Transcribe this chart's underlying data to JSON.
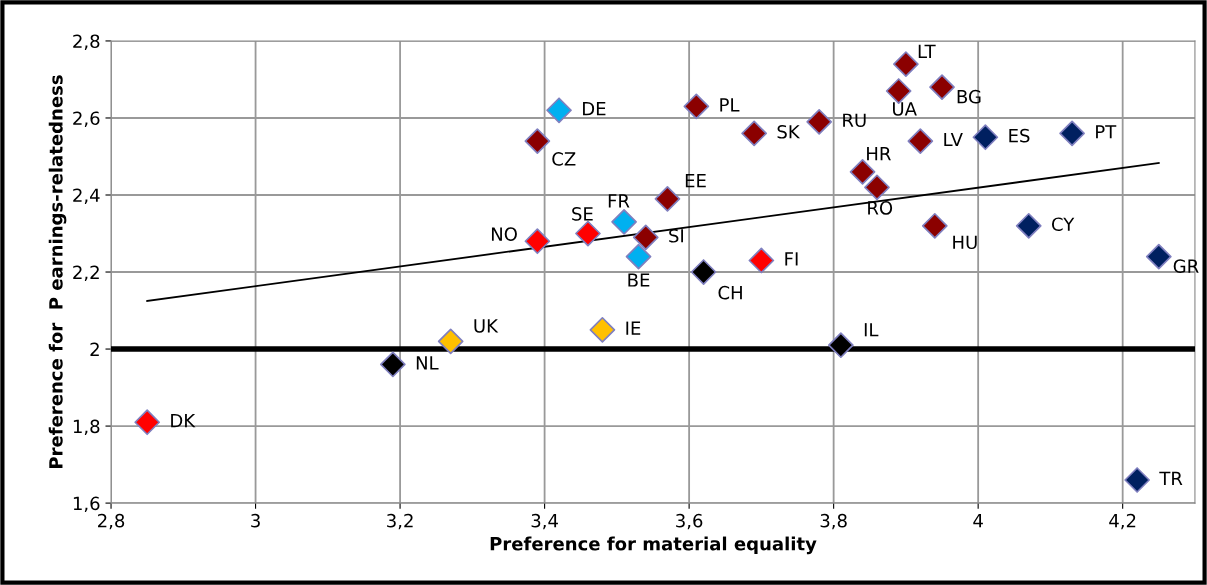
{
  "chart_data": {
    "type": "scatter",
    "xlabel": "Preference for material equality",
    "ylabel": "Preference for  P earnings-relatedness",
    "xlim": [
      2.8,
      4.3
    ],
    "ylim": [
      1.6,
      2.8
    ],
    "xticks": [
      {
        "value": 2.8,
        "label": "2,8"
      },
      3,
      {
        "value": 3.2,
        "label": "3,2"
      },
      {
        "value": 3.4,
        "label": "3,4"
      },
      {
        "value": 3.6,
        "label": "3,6"
      },
      {
        "value": 3.8,
        "label": "3,8"
      },
      4,
      {
        "value": 4.2,
        "label": "4,2"
      }
    ],
    "yticks": [
      {
        "value": 1.6,
        "label": "1,6"
      },
      {
        "value": 1.8,
        "label": "1,8"
      },
      2,
      {
        "value": 2.2,
        "label": "2,2"
      },
      {
        "value": 2.4,
        "label": "2,4"
      },
      {
        "value": 2.6,
        "label": "2,6"
      },
      {
        "value": 2.8,
        "label": "2,8"
      }
    ],
    "grid": true,
    "legend": false,
    "marker": "diamond",
    "series": [
      {
        "x": [
          3.42,
          3.39,
          3.61,
          3.69,
          3.57,
          3.51,
          3.46,
          3.39,
          3.54,
          3.53,
          3.62,
          3.7,
          3.48,
          3.27,
          3.19,
          2.85,
          3.9,
          3.89,
          3.95,
          3.78,
          3.92,
          4.01,
          4.13,
          3.84,
          3.86,
          3.94,
          4.07,
          4.25,
          3.81,
          4.22
        ],
        "values": [
          2.62,
          2.54,
          2.63,
          2.56,
          2.39,
          2.33,
          2.3,
          2.28,
          2.29,
          2.24,
          2.2,
          2.23,
          2.05,
          2.02,
          1.96,
          1.81,
          2.74,
          2.67,
          2.68,
          2.59,
          2.54,
          2.55,
          2.56,
          2.46,
          2.42,
          2.32,
          2.32,
          2.24,
          2.01,
          1.66
        ],
        "colors": [
          "#00b0f0",
          "#8b0000",
          "#8b0000",
          "#8b0000",
          "#8b0000",
          "#00b0f0",
          "#ff0000",
          "#ff0000",
          "#8b0000",
          "#00b0f0",
          "#000000",
          "#ff0000",
          "#ffc000",
          "#ffc000",
          "#000000",
          "#ff0000",
          "#8b0000",
          "#8b0000",
          "#8b0000",
          "#8b0000",
          "#8b0000",
          "#002060",
          "#002060",
          "#8b0000",
          "#8b0000",
          "#8b0000",
          "#002060",
          "#002060",
          "#000000",
          "#002060"
        ]
      },
      {
        "type": "line",
        "marker": "none",
        "color": "#000000",
        "x": [
          2.85,
          4.25
        ],
        "values": [
          2.125,
          2.483
        ]
      }
    ],
    "ref_lines": [
      {
        "axis": "y",
        "value": 2,
        "color": "#000000"
      }
    ],
    "annotations": [
      {
        "text": "DE",
        "x": 3.42,
        "y": 2.62
      },
      {
        "text": "CZ",
        "x": 3.39,
        "y": 2.54
      },
      {
        "text": "PL",
        "x": 3.61,
        "y": 2.63
      },
      {
        "text": "SK",
        "x": 3.69,
        "y": 2.56
      },
      {
        "text": "EE",
        "x": 3.57,
        "y": 2.39
      },
      {
        "text": "FR",
        "x": 3.51,
        "y": 2.33
      },
      {
        "text": "SE",
        "x": 3.46,
        "y": 2.3
      },
      {
        "text": "NO",
        "x": 3.39,
        "y": 2.28
      },
      {
        "text": "SI",
        "x": 3.54,
        "y": 2.29
      },
      {
        "text": "BE",
        "x": 3.53,
        "y": 2.24
      },
      {
        "text": "CH",
        "x": 3.62,
        "y": 2.2
      },
      {
        "text": "FI",
        "x": 3.7,
        "y": 2.23
      },
      {
        "text": "IE",
        "x": 3.48,
        "y": 2.05
      },
      {
        "text": "UK",
        "x": 3.27,
        "y": 2.02
      },
      {
        "text": "NL",
        "x": 3.19,
        "y": 1.96
      },
      {
        "text": "DK",
        "x": 2.85,
        "y": 1.81
      },
      {
        "text": "LT",
        "x": 3.9,
        "y": 2.74
      },
      {
        "text": "UA",
        "x": 3.89,
        "y": 2.67
      },
      {
        "text": "BG",
        "x": 3.95,
        "y": 2.68
      },
      {
        "text": "RU",
        "x": 3.78,
        "y": 2.59
      },
      {
        "text": "LV",
        "x": 3.92,
        "y": 2.54
      },
      {
        "text": "ES",
        "x": 4.01,
        "y": 2.55
      },
      {
        "text": "PT",
        "x": 4.13,
        "y": 2.56
      },
      {
        "text": "HR",
        "x": 3.84,
        "y": 2.46
      },
      {
        "text": "RO",
        "x": 3.86,
        "y": 2.42
      },
      {
        "text": "HU",
        "x": 3.94,
        "y": 2.32
      },
      {
        "text": "CY",
        "x": 4.07,
        "y": 2.32
      },
      {
        "text": "GR",
        "x": 4.25,
        "y": 2.24
      },
      {
        "text": "IL",
        "x": 3.81,
        "y": 2.01
      },
      {
        "text": "TR",
        "x": 4.22,
        "y": 1.66
      }
    ]
  }
}
